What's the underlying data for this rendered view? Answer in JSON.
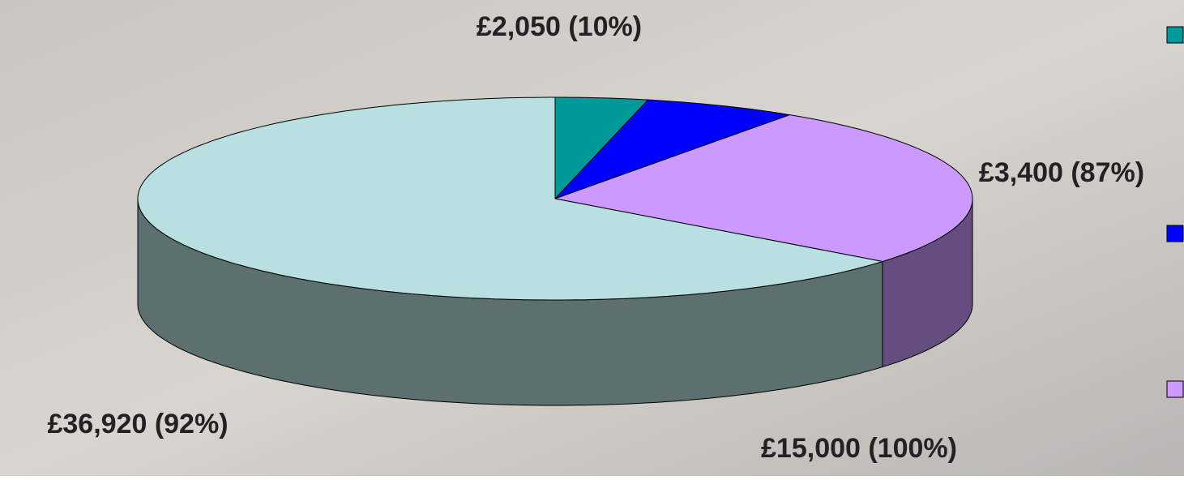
{
  "chart_data": {
    "type": "pie",
    "values": [
      2050,
      3400,
      15000,
      36920
    ],
    "value_labels": [
      "£2,050 (10%)",
      "£3,400 (87%)",
      "£15,000 (100%)",
      "£36,920 (92%)"
    ],
    "colors": [
      "#009999",
      "#0000ff",
      "#cc99ff",
      "#b8e0e0"
    ]
  }
}
